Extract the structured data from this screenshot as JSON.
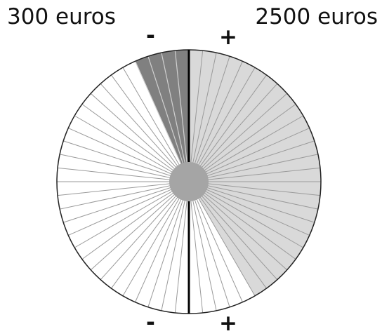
{
  "labels": {
    "left": "300 euros",
    "right": "2500 euros"
  },
  "signs": {
    "top_minus": "-",
    "top_plus": "+",
    "bottom_minus": "-",
    "bottom_plus": "+"
  },
  "colors": {
    "background": "#ffffff",
    "outline": "#222222",
    "spoke": "#9a9a9a",
    "sector_light": "#d9d9d9",
    "sector_dark": "#808080",
    "hub": "#a5a5a5",
    "axis": "#000000"
  }
}
